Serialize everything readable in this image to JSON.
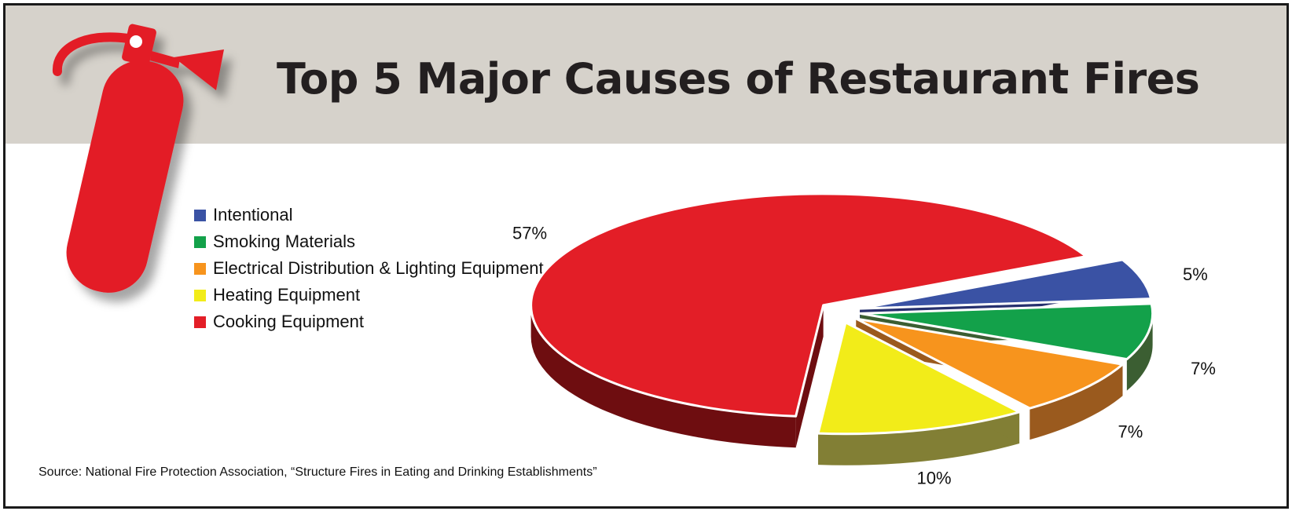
{
  "title": "Top 5 Major Causes of Restaurant Fires",
  "source": "Source: National Fire Protection Association, “Structure Fires in Eating and Drinking Establishments”",
  "icon": "fire-extinguisher-icon",
  "chart_data": {
    "type": "pie",
    "style": "3d-exploded",
    "legend_position": "left",
    "legend": [
      {
        "label": "Intentional",
        "color": "#3a52a4"
      },
      {
        "label": "Smoking Materials",
        "color": "#13a14a"
      },
      {
        "label": "Electrical Distribution & Lighting Equipment",
        "color": "#f7941d"
      },
      {
        "label": "Heating Equipment",
        "color": "#f2ec19"
      },
      {
        "label": "Cooking Equipment",
        "color": "#e31e27"
      }
    ],
    "slices": [
      {
        "label": "Intentional",
        "value": 5,
        "display": "5%",
        "color": "#3a52a4",
        "side_color": "#26306e"
      },
      {
        "label": "Smoking Materials",
        "value": 7,
        "display": "7%",
        "color": "#13a14a",
        "side_color": "#3b5e32"
      },
      {
        "label": "Electrical Distribution & Lighting Equipment",
        "value": 7,
        "display": "7%",
        "color": "#f7941d",
        "side_color": "#9a5a1e"
      },
      {
        "label": "Heating Equipment",
        "value": 10,
        "display": "10%",
        "color": "#f2ec19",
        "side_color": "#827f35"
      },
      {
        "label": "Cooking Equipment",
        "value": 57,
        "display": "57%",
        "color": "#e31e27",
        "side_color": "#6e0d10"
      }
    ]
  }
}
